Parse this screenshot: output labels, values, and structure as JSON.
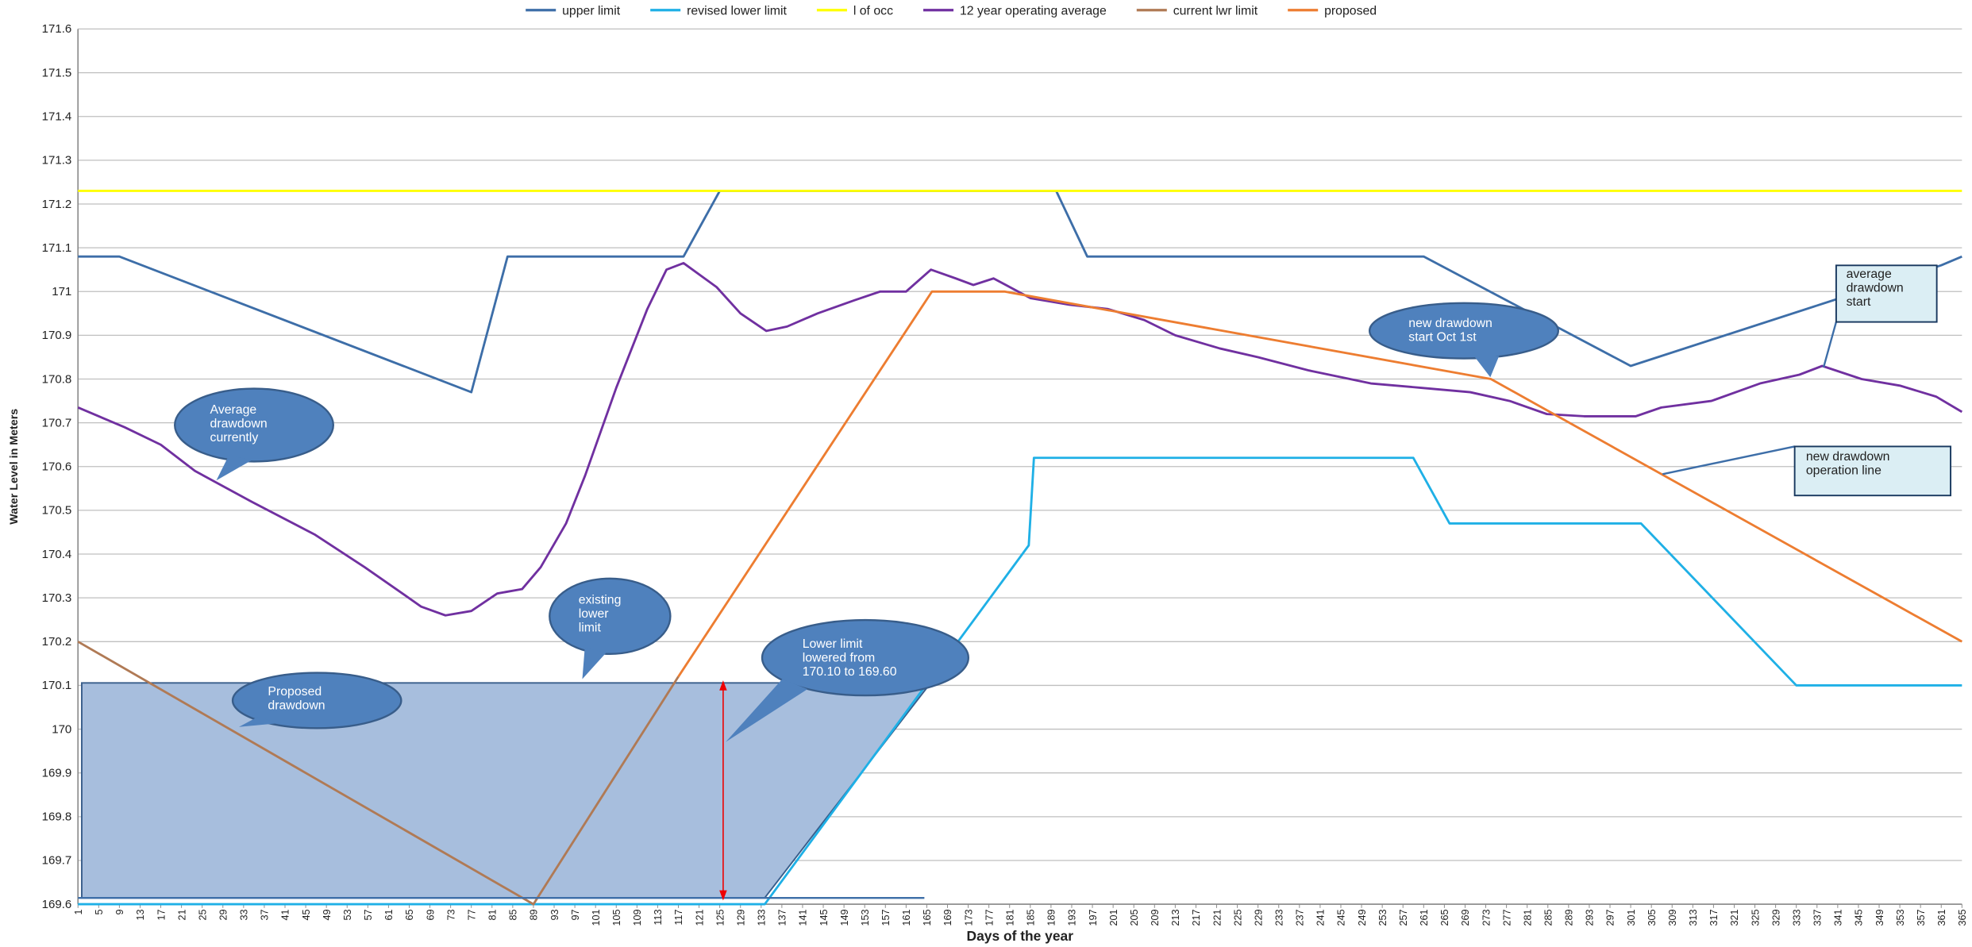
{
  "chart_data": {
    "type": "line",
    "y_label": "Water Level in Meters",
    "x_label": "Days of the year",
    "xlim": [
      1,
      365
    ],
    "xticks": [
      1,
      5,
      9,
      13,
      17,
      21,
      25,
      29,
      33,
      37,
      41,
      45,
      49,
      53,
      57,
      61,
      65,
      69,
      73,
      77,
      81,
      85,
      89,
      93,
      97,
      101,
      105,
      109,
      113,
      117,
      121,
      125,
      129,
      133,
      137,
      141,
      145,
      149,
      153,
      157,
      161,
      165,
      169,
      173,
      177,
      181,
      185,
      189,
      193,
      197,
      201,
      205,
      209,
      213,
      217,
      221,
      225,
      229,
      233,
      237,
      241,
      245,
      249,
      253,
      257,
      261,
      265,
      269,
      273,
      277,
      281,
      285,
      289,
      293,
      297,
      301,
      305,
      309,
      313,
      317,
      321,
      325,
      329,
      333,
      337,
      341,
      345,
      349,
      353,
      357,
      361,
      365
    ],
    "ylim": [
      169.6,
      171.6
    ],
    "yticks": [
      169.6,
      169.7,
      169.8,
      169.9,
      170,
      170.1,
      170.2,
      170.3,
      170.4,
      170.5,
      170.6,
      170.7,
      170.8,
      170.9,
      171,
      171.1,
      171.2,
      171.3,
      171.4,
      171.5,
      171.6
    ],
    "grid": true,
    "legend": "top",
    "series": [
      {
        "name": "upper limit",
        "color": "#3d6ea8",
        "x": [
          1,
          9,
          77,
          84,
          118,
          125,
          190,
          196,
          261,
          301,
          361,
          365
        ],
        "values": [
          171.08,
          171.08,
          170.77,
          171.08,
          171.08,
          171.23,
          171.23,
          171.08,
          171.08,
          170.83,
          171.06,
          171.08
        ]
      },
      {
        "name": "revised lower limit",
        "color": "#1fb0e6",
        "x": [
          1,
          133.7,
          184.7,
          185.7,
          259,
          266,
          303,
          333,
          365
        ],
        "values": [
          169.6,
          169.6,
          170.42,
          170.62,
          170.62,
          170.47,
          170.47,
          170.1,
          170.1
        ]
      },
      {
        "name": "l of occ",
        "color": "#ffff00",
        "x": [
          1,
          365
        ],
        "values": [
          171.23,
          171.23
        ]
      },
      {
        "name": "12 year operating average",
        "color": "#7030a0",
        "x": [
          1,
          10,
          17,
          23.6,
          34.5,
          46.7,
          56.4,
          63.7,
          67.3,
          72,
          77,
          82,
          86.8,
          90.4,
          95.3,
          99,
          105,
          111,
          114.7,
          118,
          124.4,
          129,
          134,
          138,
          143.9,
          151,
          156,
          161,
          165.8,
          170.6,
          174,
          177.9,
          185,
          192.5,
          200,
          207,
          213,
          221.6,
          229,
          238.7,
          250.8,
          260.5,
          270,
          277.6,
          284.8,
          292,
          302,
          306.9,
          316.6,
          326,
          333.6,
          338,
          345.6,
          353,
          360,
          365
        ],
        "values": [
          170.735,
          170.69,
          170.65,
          170.59,
          170.52,
          170.445,
          170.37,
          170.31,
          170.28,
          170.26,
          170.27,
          170.31,
          170.32,
          170.37,
          170.47,
          170.58,
          170.78,
          170.96,
          171.05,
          171.065,
          171.01,
          170.95,
          170.91,
          170.92,
          170.95,
          170.98,
          171.0,
          171.0,
          171.05,
          171.03,
          171.015,
          171.03,
          170.985,
          170.97,
          170.96,
          170.935,
          170.9,
          170.87,
          170.85,
          170.82,
          170.79,
          170.78,
          170.77,
          170.75,
          170.72,
          170.715,
          170.715,
          170.735,
          170.75,
          170.79,
          170.81,
          170.83,
          170.8,
          170.785,
          170.76,
          170.725
        ]
      },
      {
        "name": "current lwr limit",
        "color": "#b07a55",
        "x": [
          1,
          89,
          117
        ],
        "values": [
          170.2,
          169.6,
          170.12
        ]
      },
      {
        "name": "proposed",
        "color": "#ed7d31",
        "x": [
          117,
          166,
          180,
          274,
          365
        ],
        "values": [
          170.12,
          171.0,
          171.0,
          170.8,
          170.2
        ]
      }
    ],
    "annotations": [
      {
        "lines": [
          "Average",
          "drawdown",
          "currently"
        ]
      },
      {
        "lines": [
          "existing",
          "lower",
          "limit"
        ]
      },
      {
        "lines": [
          "Proposed",
          "drawdown"
        ]
      },
      {
        "lines": [
          "Lower limit",
          "lowered from",
          "170.10 to 169.60"
        ]
      },
      {
        "lines": [
          "new drawdown",
          "start Oct 1st"
        ]
      },
      {
        "lines": [
          "average",
          "drawdown",
          "start"
        ]
      },
      {
        "lines": [
          "new drawdown",
          "operation line"
        ]
      }
    ]
  }
}
